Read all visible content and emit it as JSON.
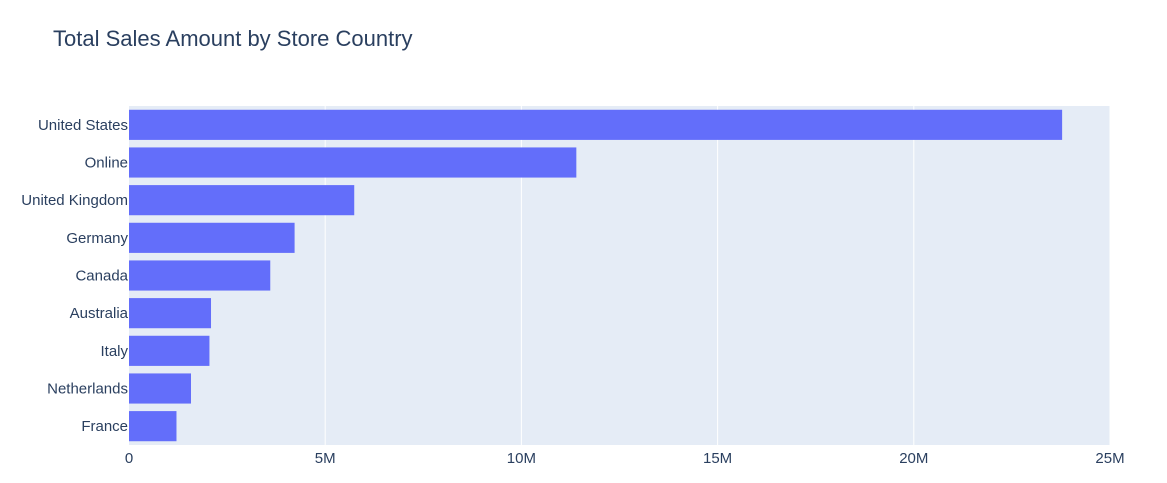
{
  "chart_data": {
    "type": "bar",
    "orientation": "horizontal",
    "title": "Total Sales Amount by Store Country",
    "xlabel": "",
    "ylabel": "",
    "categories": [
      "United States",
      "Online",
      "United Kingdom",
      "Germany",
      "Canada",
      "Australia",
      "Italy",
      "Netherlands",
      "France"
    ],
    "values": [
      23780000,
      11400000,
      5740000,
      4220000,
      3600000,
      2090000,
      2050000,
      1580000,
      1210000
    ],
    "xlim": [
      0,
      25000000
    ],
    "xticks": [
      0,
      5000000,
      10000000,
      15000000,
      20000000,
      25000000
    ],
    "xtick_labels": [
      "0",
      "5M",
      "10M",
      "15M",
      "20M",
      "25M"
    ],
    "grid": true,
    "bar_color": "#636efa",
    "plot_bg": "#e5ecf6",
    "grid_color": "#ffffff",
    "text_color": "#2a3f5f"
  }
}
